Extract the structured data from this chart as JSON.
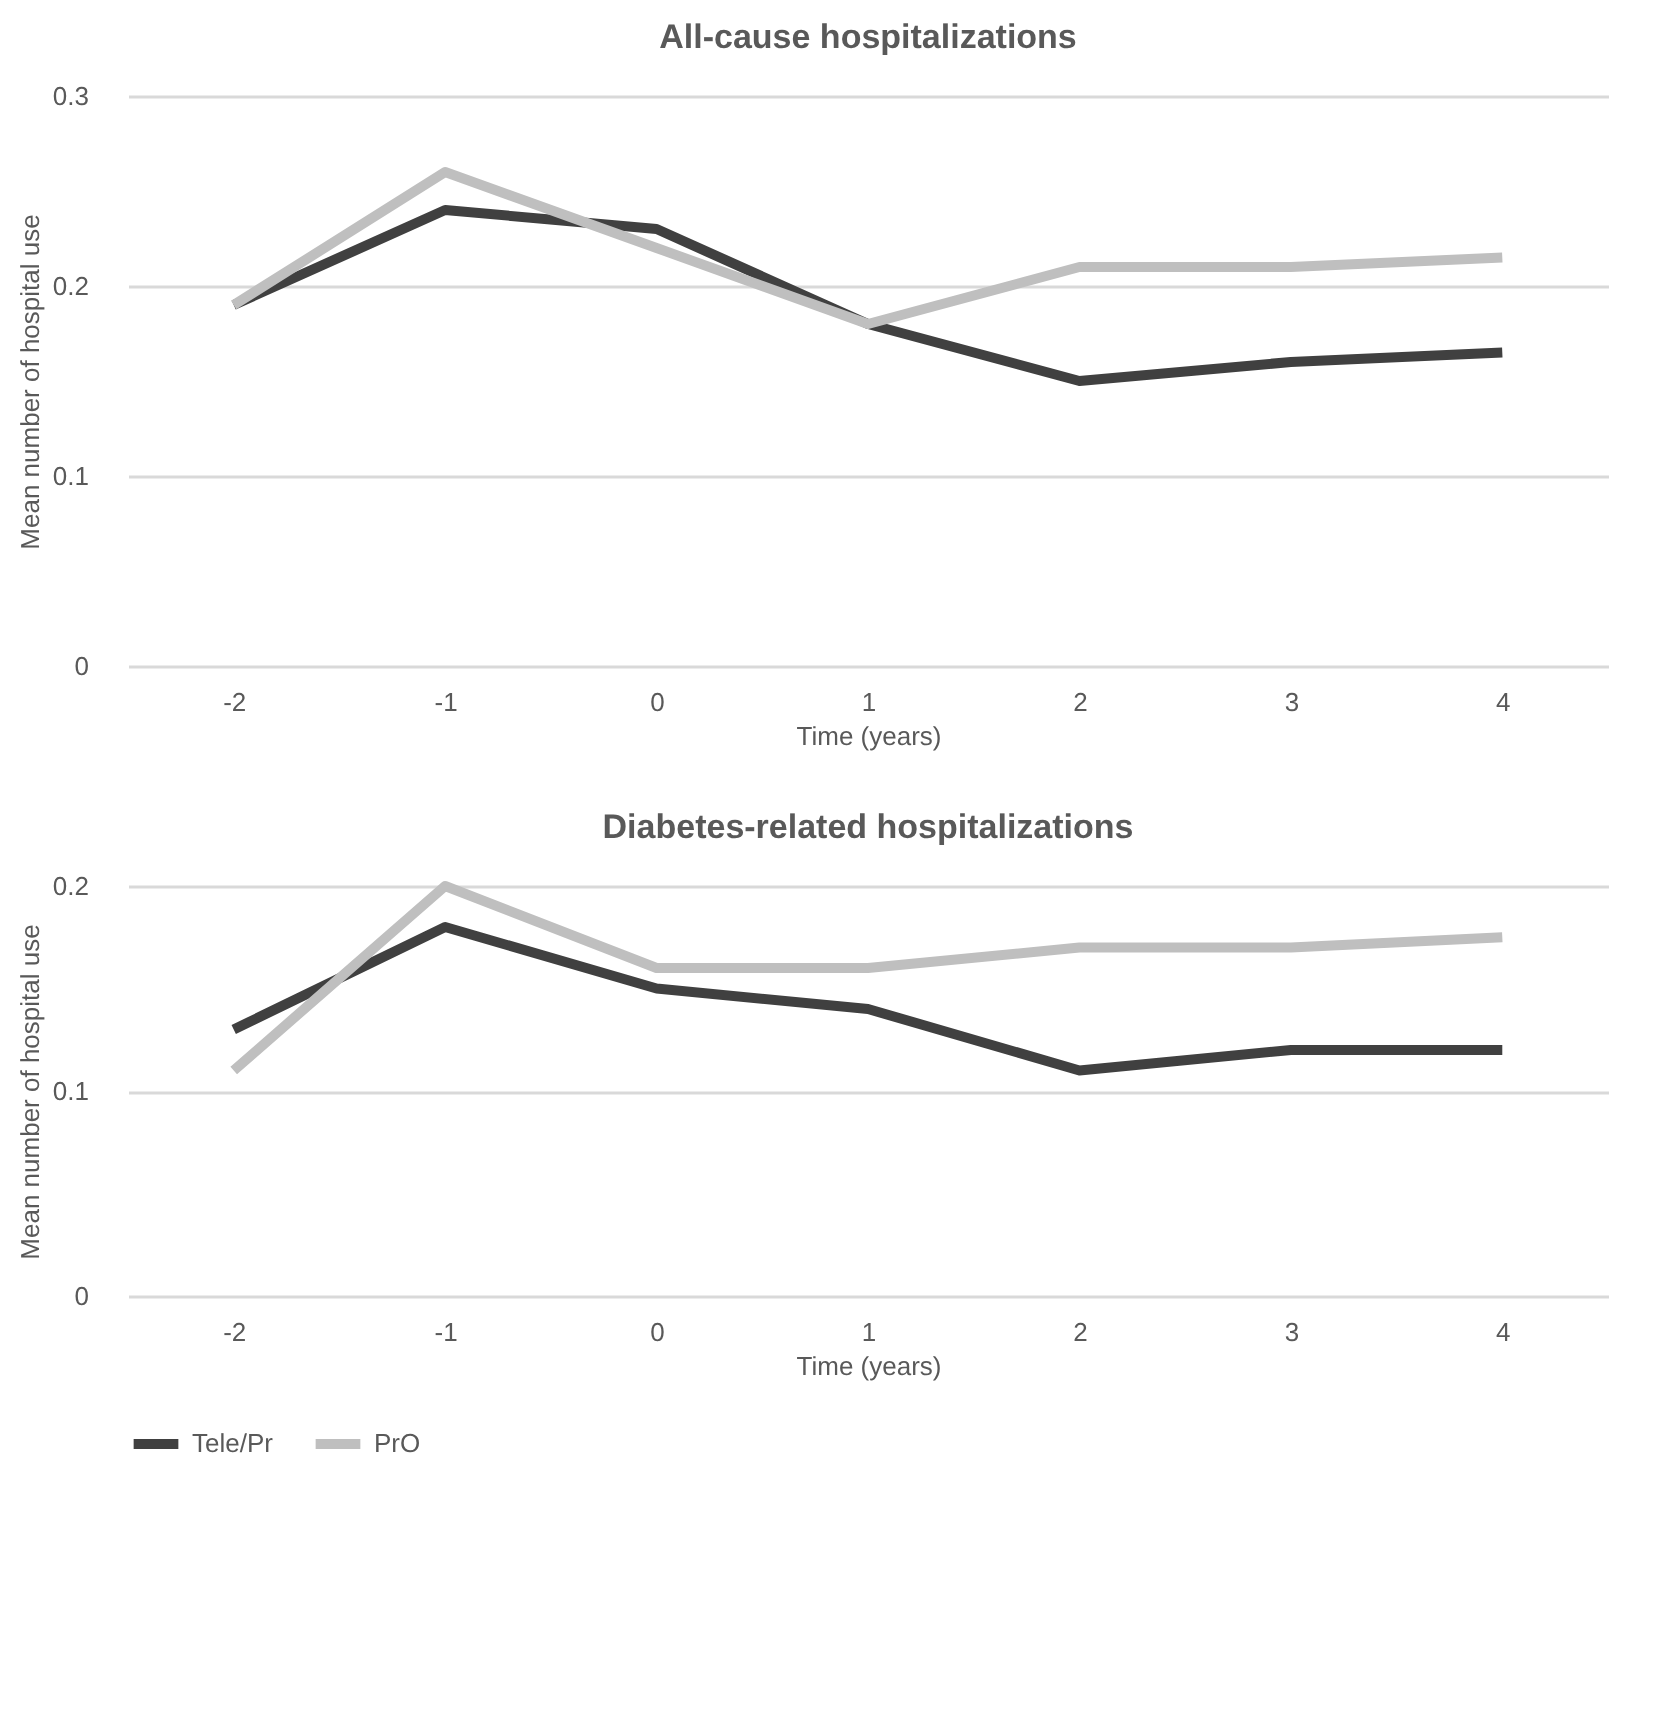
{
  "chart_data": [
    {
      "type": "line",
      "title": "All-cause hospitalizations",
      "xlabel": "Time (years)",
      "ylabel": "Mean number of hospital use",
      "categories": [
        "-2",
        "-1",
        "0",
        "1",
        "2",
        "3",
        "4"
      ],
      "ylim": [
        0,
        0.3
      ],
      "yticks": [
        0,
        0.1,
        0.2,
        0.3
      ],
      "grid": "y",
      "legend": "bottom",
      "series": [
        {
          "name": "Tele/Pr",
          "color": "#404040",
          "values": [
            0.19,
            0.24,
            0.23,
            0.18,
            0.15,
            0.16,
            0.165
          ]
        },
        {
          "name": "PrO",
          "color": "#bfbfbf",
          "values": [
            0.19,
            0.26,
            0.22,
            0.18,
            0.21,
            0.21,
            0.215
          ]
        }
      ]
    },
    {
      "type": "line",
      "title": "Diabetes-related hospitalizations",
      "xlabel": "Time (years)",
      "ylabel": "Mean number of hospital use",
      "categories": [
        "-2",
        "-1",
        "0",
        "1",
        "2",
        "3",
        "4"
      ],
      "ylim": [
        0,
        0.2
      ],
      "yticks": [
        0,
        0.1,
        0.2
      ],
      "grid": "y",
      "legend": "bottom",
      "series": [
        {
          "name": "Tele/Pr",
          "color": "#404040",
          "values": [
            0.13,
            0.18,
            0.15,
            0.14,
            0.11,
            0.12,
            0.12
          ]
        },
        {
          "name": "PrO",
          "color": "#bfbfbf",
          "values": [
            0.11,
            0.2,
            0.16,
            0.16,
            0.17,
            0.17,
            0.175
          ]
        }
      ]
    }
  ]
}
